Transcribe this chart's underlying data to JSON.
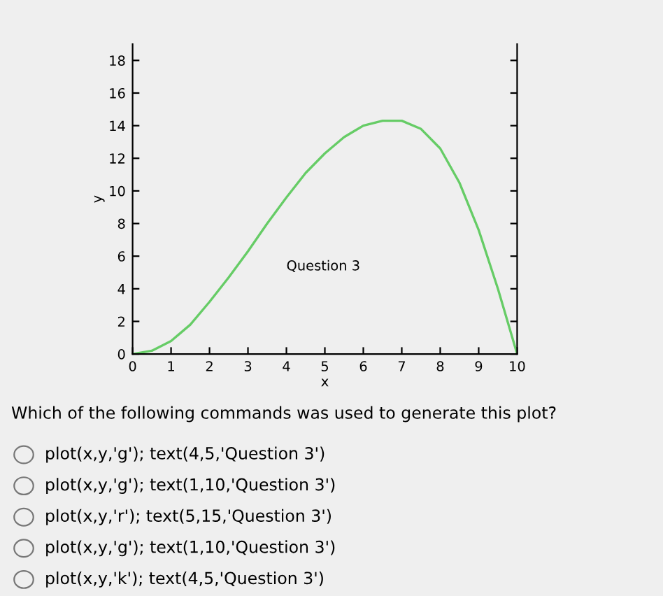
{
  "chart_data": {
    "type": "line",
    "xlabel": "x",
    "ylabel": "y",
    "x": [
      0,
      0.5,
      1,
      1.5,
      2,
      2.5,
      3,
      3.5,
      4,
      4.5,
      5,
      5.5,
      6,
      6.5,
      7,
      7.5,
      8,
      8.5,
      9,
      9.5,
      10
    ],
    "series": [
      {
        "color": "#66cc66",
        "values": [
          0,
          0.2,
          0.8,
          1.8,
          3.2,
          4.7,
          6.3,
          8.0,
          9.6,
          11.1,
          12.3,
          13.3,
          14.0,
          14.3,
          14.3,
          13.8,
          12.6,
          10.5,
          7.6,
          4.0,
          0
        ]
      }
    ],
    "xlim": [
      0,
      10
    ],
    "ylim": [
      0,
      19
    ],
    "xticks": [
      0,
      1,
      2,
      3,
      4,
      5,
      6,
      7,
      8,
      9,
      10
    ],
    "yticks": [
      0,
      2,
      4,
      6,
      8,
      10,
      12,
      14,
      16,
      18
    ],
    "grid": false,
    "legend": false,
    "marker": "none",
    "line_style": "solid",
    "annotations": [
      "Question 3",
      "Which of the following commands was used to generate this plot?",
      "plot(x,y,'g'); text(4,5,'Question 3')",
      "plot(x,y,'g'); text(1,10,'Question 3')",
      "plot(x,y,'r'); text(5,15,'Question 3')",
      "plot(x,y,'g'); text(1,10,'Question 3')",
      "plot(x,y,'k'); text(4,5,'Question 3')"
    ]
  }
}
